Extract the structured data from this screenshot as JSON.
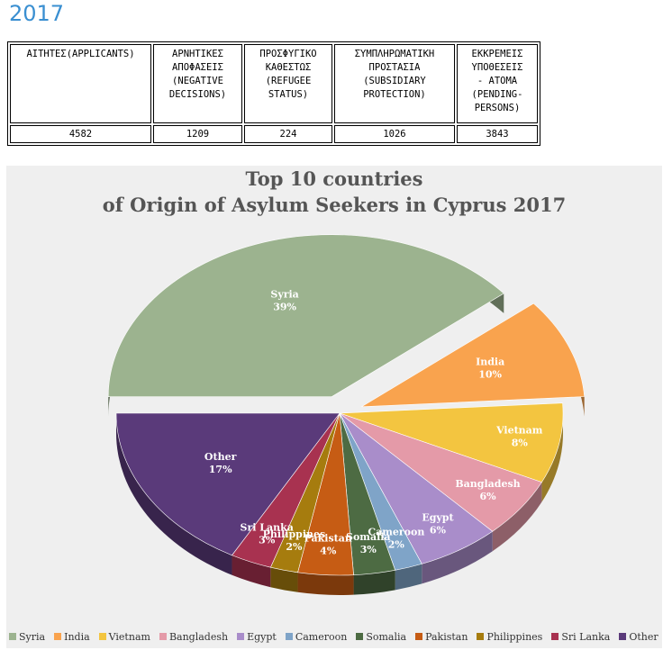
{
  "page": {
    "heading": "2017"
  },
  "table": {
    "headers": [
      "ΑΙΤΗΤΕΣ(APPLICANTS)",
      "ΑΡΝΗΤΙΚΕΣ\nΑΠΟΦΑΣΕΙΣ\n(NEGATIVE\nDECISIONS)",
      "ΠΡΟΣΦΥΓΙΚΟ\nΚΑΘΕΣΤΩΣ\n(REFUGEE\nSTATUS)",
      "ΣΥΜΠΛΗΡΩΜΑΤΙΚΗ\nΠΡΟΣΤΑΣΙΑ\n(SUBSIDIARY\nPROTECTION)",
      "ΕΚΚΡΕΜΕΙΣ\nΥΠΟΘΕΣΕΙΣ\n- ΑΤΟΜΑ\n(PENDING-\nPERSONS)"
    ],
    "values": [
      "4582",
      "1209",
      "224",
      "1026",
      "3843"
    ]
  },
  "chart_data": {
    "type": "pie",
    "title_line1": "Top 10 countries",
    "title_line2": "of Origin of Asylum Seekers in Cyprus 2017",
    "legend_position": "bottom",
    "slices": [
      {
        "label": "Syria",
        "value": 39,
        "pct": "39%",
        "color": "#9cb38f",
        "exploded": true
      },
      {
        "label": "India",
        "value": 10,
        "pct": "10%",
        "color": "#f9a34e",
        "exploded": true
      },
      {
        "label": "Vietnam",
        "value": 8,
        "pct": "8%",
        "color": "#f3c540"
      },
      {
        "label": "Bangladesh",
        "value": 6,
        "pct": "6%",
        "color": "#e49aa8"
      },
      {
        "label": "Egypt",
        "value": 6,
        "pct": "6%",
        "color": "#a98dca"
      },
      {
        "label": "Cameroon",
        "value": 2,
        "pct": "2%",
        "color": "#7fa4c8"
      },
      {
        "label": "Somalia",
        "value": 3,
        "pct": "3%",
        "color": "#4d6b43"
      },
      {
        "label": "Pakistan",
        "value": 4,
        "pct": "4%",
        "color": "#c65c14"
      },
      {
        "label": "Philippines",
        "value": 2,
        "pct": "2%",
        "color": "#a67c0e"
      },
      {
        "label": "Sri Lanka",
        "value": 3,
        "pct": "3%",
        "color": "#a83250"
      },
      {
        "label": "Other",
        "value": 17,
        "pct": "17%",
        "color": "#5a3a7a"
      }
    ]
  }
}
